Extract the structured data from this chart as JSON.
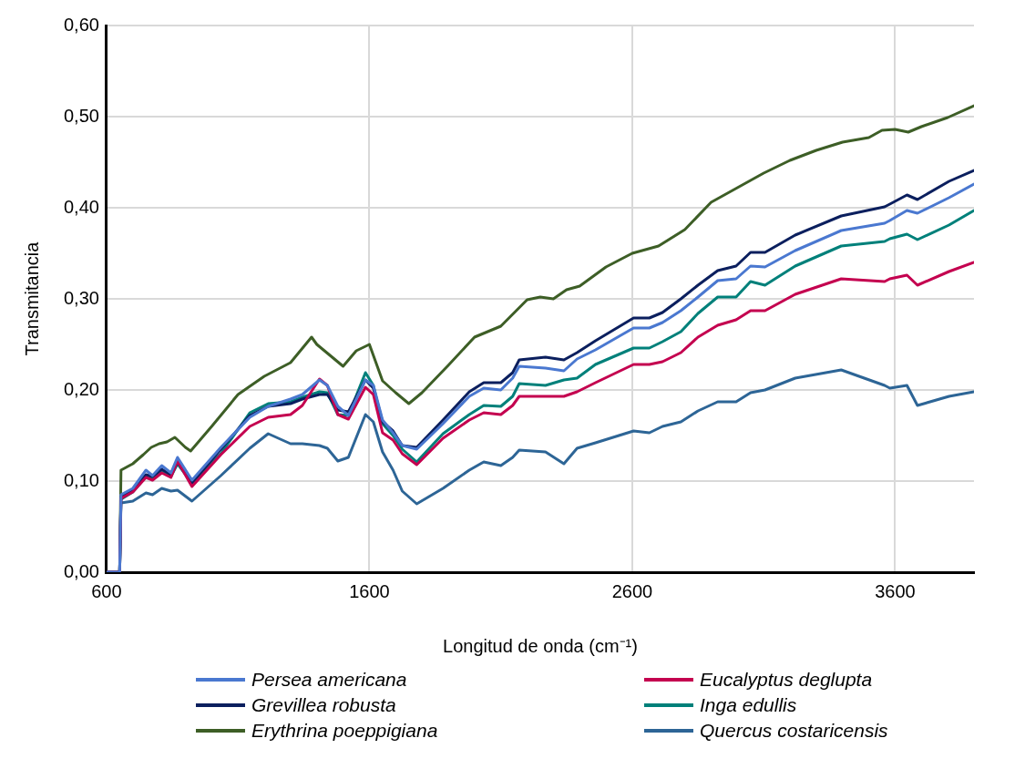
{
  "chart_data": {
    "type": "line",
    "xlabel": "Longitud de onda (cm⁻¹)",
    "ylabel": "Transmitancia",
    "x": [
      600,
      650,
      655,
      700,
      750,
      775,
      810,
      845,
      870,
      925,
      1035,
      1145,
      1215,
      1300,
      1345,
      1410,
      1440,
      1480,
      1520,
      1585,
      1615,
      1650,
      1690,
      1725,
      1780,
      1880,
      1980,
      2035,
      2100,
      2145,
      2170,
      2270,
      2340,
      2390,
      2460,
      2605,
      2665,
      2715,
      2785,
      2850,
      2925,
      2995,
      3050,
      3105,
      3220,
      3395,
      3560,
      3580,
      3645,
      3685,
      3805,
      3900
    ],
    "series": [
      {
        "name": "Persea americana",
        "color": "#4a78d0",
        "values": [
          0,
          0,
          0.085,
          0.092,
          0.112,
          0.106,
          0.117,
          0.109,
          0.126,
          0.101,
          0.137,
          0.17,
          0.182,
          0.19,
          0.195,
          0.211,
          0.205,
          0.182,
          0.172,
          0.211,
          0.205,
          0.167,
          0.153,
          0.139,
          0.135,
          0.163,
          0.193,
          0.202,
          0.2,
          0.213,
          0.226,
          0.224,
          0.221,
          0.234,
          0.244,
          0.268,
          0.268,
          0.274,
          0.287,
          0.302,
          0.32,
          0.322,
          0.336,
          0.335,
          0.353,
          0.375,
          0.383,
          0.386,
          0.397,
          0.394,
          0.411,
          0.426
        ]
      },
      {
        "name": "Eucalyptus deglupta",
        "color": "#c4004f",
        "values": [
          0,
          0,
          0.081,
          0.088,
          0.104,
          0.101,
          0.109,
          0.104,
          0.122,
          0.094,
          0.129,
          0.16,
          0.17,
          0.173,
          0.183,
          0.212,
          0.205,
          0.173,
          0.168,
          0.203,
          0.195,
          0.153,
          0.145,
          0.13,
          0.118,
          0.147,
          0.167,
          0.175,
          0.173,
          0.183,
          0.193,
          0.193,
          0.193,
          0.198,
          0.208,
          0.228,
          0.228,
          0.231,
          0.241,
          0.258,
          0.271,
          0.277,
          0.287,
          0.287,
          0.305,
          0.322,
          0.319,
          0.322,
          0.326,
          0.315,
          0.33,
          0.34
        ]
      },
      {
        "name": "Grevillea robusta",
        "color": "#0b1f5e",
        "values": [
          0,
          0,
          0.083,
          0.091,
          0.107,
          0.105,
          0.113,
          0.107,
          0.121,
          0.098,
          0.135,
          0.172,
          0.182,
          0.185,
          0.19,
          0.195,
          0.195,
          0.178,
          0.176,
          0.211,
          0.202,
          0.165,
          0.155,
          0.139,
          0.137,
          0.167,
          0.198,
          0.208,
          0.208,
          0.219,
          0.233,
          0.236,
          0.233,
          0.241,
          0.254,
          0.279,
          0.279,
          0.285,
          0.3,
          0.315,
          0.331,
          0.336,
          0.351,
          0.351,
          0.37,
          0.391,
          0.401,
          0.404,
          0.414,
          0.409,
          0.429,
          0.441
        ]
      },
      {
        "name": "Inga edullis",
        "color": "#00807a",
        "values": [
          0,
          0,
          0.08,
          0.088,
          0.105,
          0.104,
          0.111,
          0.105,
          0.119,
          0.098,
          0.13,
          0.175,
          0.185,
          0.187,
          0.192,
          0.198,
          0.197,
          0.173,
          0.172,
          0.219,
          0.205,
          0.163,
          0.15,
          0.135,
          0.121,
          0.152,
          0.173,
          0.183,
          0.182,
          0.193,
          0.207,
          0.205,
          0.211,
          0.213,
          0.228,
          0.246,
          0.246,
          0.253,
          0.264,
          0.284,
          0.302,
          0.302,
          0.319,
          0.315,
          0.336,
          0.358,
          0.363,
          0.366,
          0.371,
          0.365,
          0.381,
          0.397
        ]
      },
      {
        "name": "Erythrina poeppigiana",
        "color": "#3d5e26",
        "x": [
          600,
          650,
          655,
          700,
          740,
          770,
          800,
          830,
          860,
          900,
          920,
          1000,
          1100,
          1200,
          1300,
          1380,
          1400,
          1450,
          1500,
          1550,
          1600,
          1650,
          1700,
          1750,
          1800,
          1900,
          2000,
          2100,
          2200,
          2250,
          2300,
          2350,
          2400,
          2500,
          2600,
          2700,
          2800,
          2900,
          3000,
          3100,
          3200,
          3300,
          3400,
          3500,
          3550,
          3600,
          3650,
          3700,
          3800,
          3900
        ],
        "values": [
          0,
          0,
          0.112,
          0.119,
          0.129,
          0.137,
          0.141,
          0.143,
          0.148,
          0.137,
          0.133,
          0.16,
          0.195,
          0.215,
          0.23,
          0.258,
          0.25,
          0.238,
          0.226,
          0.243,
          0.25,
          0.21,
          0.197,
          0.185,
          0.197,
          0.227,
          0.258,
          0.27,
          0.299,
          0.302,
          0.3,
          0.31,
          0.314,
          0.335,
          0.35,
          0.358,
          0.376,
          0.406,
          0.422,
          0.438,
          0.452,
          0.463,
          0.472,
          0.477,
          0.485,
          0.486,
          0.483,
          0.489,
          0.499,
          0.512
        ]
      },
      {
        "name": "Quercus costaricensis",
        "color": "#2d6596",
        "values": [
          0,
          0,
          0.076,
          0.078,
          0.087,
          0.085,
          0.092,
          0.089,
          0.09,
          0.078,
          0.106,
          0.136,
          0.152,
          0.141,
          0.141,
          0.139,
          0.136,
          0.122,
          0.126,
          0.173,
          0.165,
          0.132,
          0.112,
          0.089,
          0.075,
          0.092,
          0.112,
          0.121,
          0.117,
          0.126,
          0.134,
          0.132,
          0.119,
          0.136,
          0.142,
          0.155,
          0.153,
          0.16,
          0.165,
          0.177,
          0.187,
          0.187,
          0.197,
          0.2,
          0.213,
          0.222,
          0.205,
          0.202,
          0.205,
          0.183,
          0.193,
          0.198
        ]
      }
    ],
    "xlim": [
      600,
      3900
    ],
    "xticks": [
      600,
      1600,
      2600,
      3600
    ],
    "ylim": [
      0,
      0.6
    ],
    "yticks": [
      {
        "value": 0,
        "label": "0,00"
      },
      {
        "value": 0.1,
        "label": "0,10"
      },
      {
        "value": 0.2,
        "label": "0,20"
      },
      {
        "value": 0.3,
        "label": "0,30"
      },
      {
        "value": 0.4,
        "label": "0,40"
      },
      {
        "value": 0.5,
        "label": "0,50"
      },
      {
        "value": 0.6,
        "label": "0,60"
      }
    ],
    "grid": true,
    "legend": "bottom",
    "marker": "none",
    "line_style": "solid"
  }
}
